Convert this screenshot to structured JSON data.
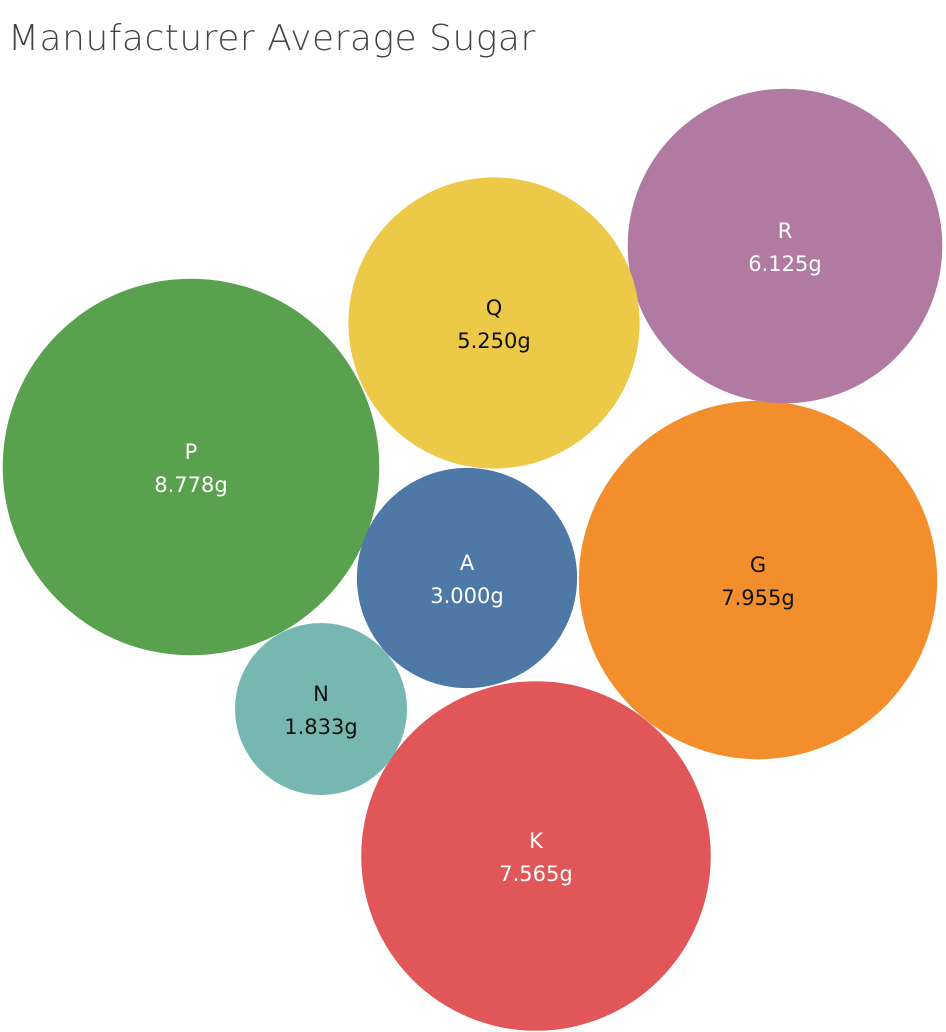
{
  "chart_data": {
    "type": "bubble",
    "title": "Manufacturer Average Sugar",
    "series": [
      {
        "name": "P",
        "value": 8.778,
        "label": "8.778g",
        "color": "#59a14f",
        "text_color": "#ffffff"
      },
      {
        "name": "G",
        "value": 7.955,
        "label": "7.955g",
        "color": "#f28e2b",
        "text_color": "#111111"
      },
      {
        "name": "K",
        "value": 7.565,
        "label": "7.565g",
        "color": "#e15759",
        "text_color": "#ffffff"
      },
      {
        "name": "R",
        "value": 6.125,
        "label": "6.125g",
        "color": "#b07aa1",
        "text_color": "#ffffff"
      },
      {
        "name": "Q",
        "value": 5.25,
        "label": "5.250g",
        "color": "#edc948",
        "text_color": "#111111"
      },
      {
        "name": "A",
        "value": 3.0,
        "label": "3.000g",
        "color": "#4e79a7",
        "text_color": "#ffffff"
      },
      {
        "name": "N",
        "value": 1.833,
        "label": "1.833g",
        "color": "#76b7b2",
        "text_color": "#111111"
      }
    ]
  }
}
